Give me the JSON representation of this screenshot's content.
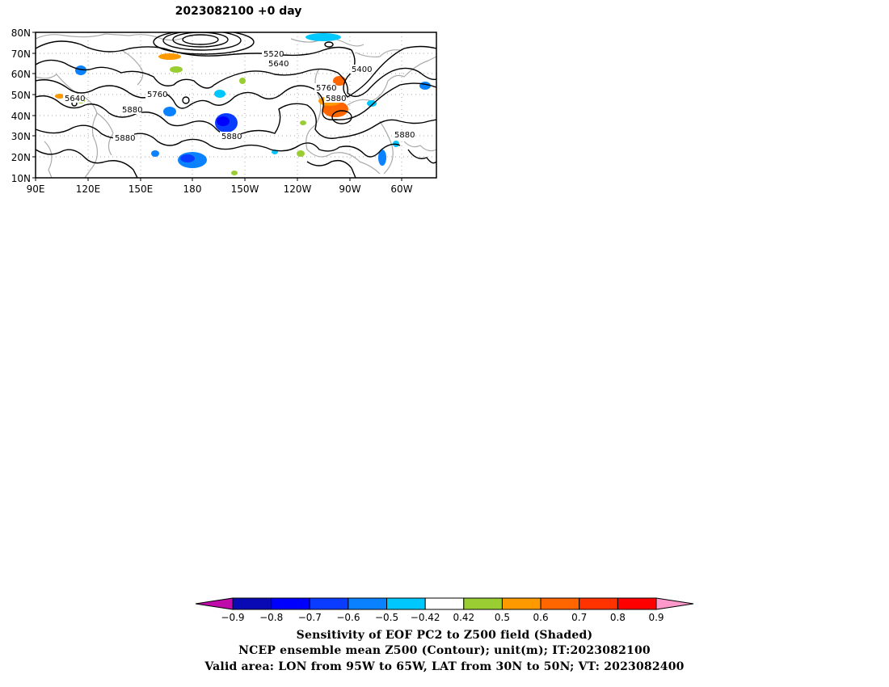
{
  "map": {
    "title": "2023082100 +0 day",
    "lat_ticks": [
      "80N",
      "70N",
      "60N",
      "50N",
      "40N",
      "30N",
      "20N",
      "10N"
    ],
    "lon_ticks": [
      "90E",
      "120E",
      "150E",
      "180",
      "150W",
      "120W",
      "90W",
      "60W"
    ],
    "contour_labels": [
      "5520",
      "5640",
      "5400",
      "5760",
      "5880",
      "5640",
      "5760",
      "5880",
      "5880",
      "5880",
      "5880"
    ],
    "colors": {
      "contour": "#000000",
      "coastline": "#aaaaaa",
      "grid": "#888888"
    }
  },
  "colorbar": {
    "labels": [
      "-0.9",
      "-0.8",
      "-0.7",
      "-0.6",
      "-0.5",
      "-0.42",
      "0.42",
      "0.5",
      "0.6",
      "0.7",
      "0.8",
      "0.9"
    ],
    "colors": [
      "#c00bab",
      "#0a0ab4",
      "#0000ff",
      "#0a3cff",
      "#0a82ff",
      "#00c8ff",
      "#ffffff",
      "#9acd32",
      "#ff9900",
      "#ff6600",
      "#ff3300",
      "#ff0000",
      "#ff99cc"
    ]
  },
  "captions": {
    "line1": "Sensitivity of EOF PC2 to Z500 field (Shaded)",
    "line2": "NCEP ensemble mean Z500 (Contour); unit(m); IT:2023082100",
    "line3": "Valid area: LON from 95W to 65W, LAT from 30N to 50N; VT: 2023082400"
  }
}
